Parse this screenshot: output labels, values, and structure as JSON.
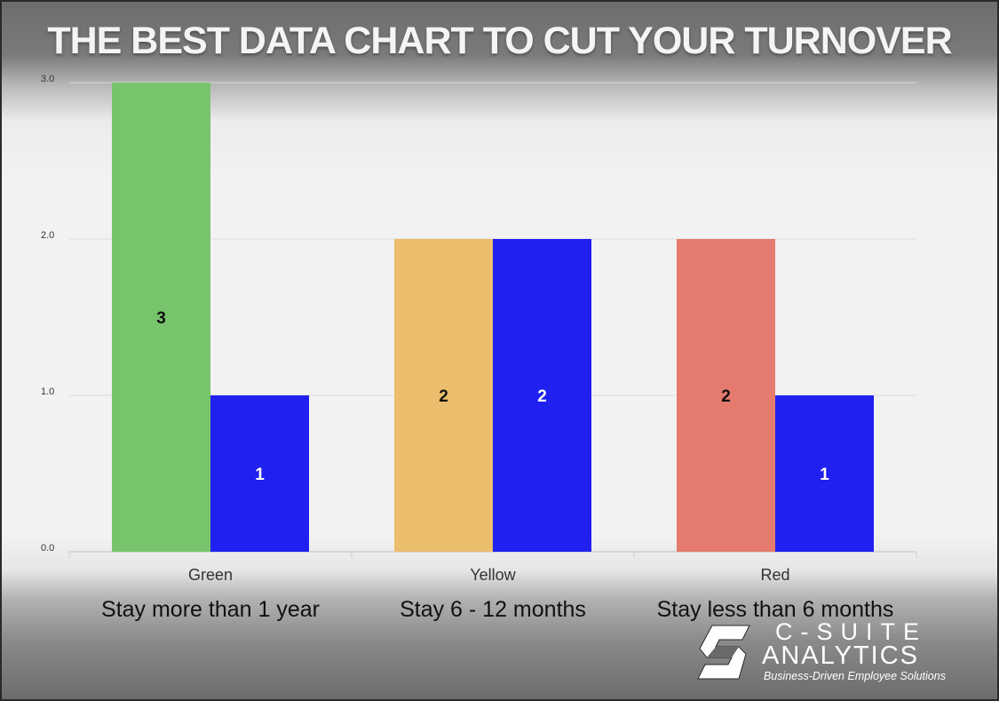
{
  "title": "THE BEST DATA CHART TO CUT YOUR TURNOVER",
  "chart_data": {
    "type": "bar",
    "categories": [
      "Green",
      "Yellow",
      "Red"
    ],
    "category_descriptions": [
      "Stay more than 1 year",
      "Stay 6 - 12 months",
      "Stay less than 6 months"
    ],
    "series": [
      {
        "values": [
          3,
          2,
          2
        ],
        "colors": [
          "#77c46c",
          "#ebbe6d",
          "#e57a6e"
        ]
      },
      {
        "values": [
          1,
          2,
          1
        ],
        "colors": [
          "#2020f0",
          "#2020f0",
          "#2020f0"
        ]
      }
    ],
    "y_ticks": [
      "0.0",
      "1.0",
      "2.0",
      "3.0"
    ],
    "ylim": [
      0,
      3
    ],
    "data_labels": [
      [
        "3",
        "2",
        "2"
      ],
      [
        "1",
        "2",
        "1"
      ]
    ],
    "grid": true
  },
  "logo": {
    "line1": "C-SUITE",
    "line2": "ANALYTICS",
    "tagline": "Business-Driven Employee Solutions"
  }
}
